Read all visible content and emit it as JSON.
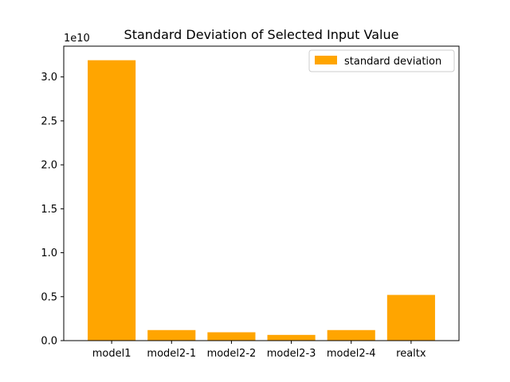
{
  "chart_data": {
    "type": "bar",
    "title": "Standard Deviation of Selected Input Value",
    "xlabel": "",
    "ylabel": "",
    "y_offset_label": "1e10",
    "y_scale": 10000000000,
    "categories": [
      "model1",
      "model2-1",
      "model2-2",
      "model2-3",
      "model2-4",
      "realtx"
    ],
    "series": [
      {
        "name": "standard deviation",
        "color": "#ffa500",
        "values": [
          31900000000,
          1200000000,
          950000000,
          650000000,
          1200000000,
          5200000000
        ]
      }
    ],
    "ylim": [
      0,
      33500000000
    ],
    "yticks": [
      0.0,
      0.5,
      1.0,
      1.5,
      2.0,
      2.5,
      3.0
    ],
    "ytick_labels": [
      "0.0",
      "0.5",
      "1.0",
      "1.5",
      "2.0",
      "2.5",
      "3.0"
    ],
    "grid": false,
    "legend_position": "top-right"
  }
}
